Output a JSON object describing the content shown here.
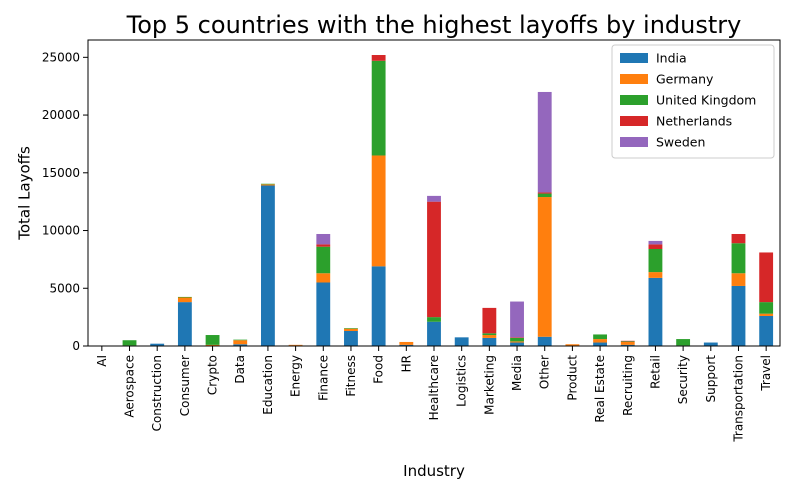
{
  "chart_data": {
    "type": "bar",
    "stacked": true,
    "title": "Top 5 countries with the highest layoffs by industry",
    "xlabel": "Industry",
    "ylabel": "Total Layoffs",
    "ylim": [
      0,
      26500
    ],
    "yticks": [
      0,
      5000,
      10000,
      15000,
      20000,
      25000
    ],
    "legend_position": "top-right",
    "grid": false,
    "categories": [
      "AI",
      "Aerospace",
      "Construction",
      "Consumer",
      "Crypto",
      "Data",
      "Education",
      "Energy",
      "Finance",
      "Fitness",
      "Food",
      "HR",
      "Healthcare",
      "Logistics",
      "Marketing",
      "Media",
      "Other",
      "Product",
      "Real Estate",
      "Recruiting",
      "Retail",
      "Security",
      "Support",
      "Transportation",
      "Travel"
    ],
    "series": [
      {
        "name": "India",
        "color": "#1f77b4",
        "values": [
          0,
          0,
          200,
          3800,
          0,
          150,
          13900,
          50,
          5500,
          1300,
          6900,
          100,
          2100,
          750,
          700,
          300,
          800,
          0,
          300,
          100,
          5900,
          50,
          300,
          5200,
          2600
        ]
      },
      {
        "name": "Germany",
        "color": "#ff7f0e",
        "values": [
          0,
          50,
          0,
          400,
          100,
          350,
          100,
          50,
          800,
          200,
          9600,
          250,
          0,
          0,
          250,
          100,
          12100,
          150,
          300,
          250,
          500,
          0,
          0,
          1100,
          200
        ]
      },
      {
        "name": "United Kingdom",
        "color": "#2ca02c",
        "values": [
          0,
          450,
          0,
          50,
          850,
          50,
          50,
          0,
          2300,
          50,
          8200,
          0,
          400,
          0,
          150,
          300,
          300,
          0,
          400,
          50,
          2000,
          550,
          0,
          2600,
          1000
        ]
      },
      {
        "name": "Netherlands",
        "color": "#d62728",
        "values": [
          0,
          0,
          0,
          0,
          0,
          0,
          0,
          0,
          200,
          0,
          500,
          0,
          10000,
          0,
          2200,
          50,
          100,
          0,
          0,
          50,
          400,
          0,
          0,
          800,
          4300
        ]
      },
      {
        "name": "Sweden",
        "color": "#9467bd",
        "values": [
          0,
          0,
          0,
          0,
          0,
          0,
          0,
          0,
          900,
          0,
          0,
          0,
          500,
          0,
          0,
          3100,
          8700,
          0,
          0,
          0,
          300,
          0,
          0,
          0,
          0
        ]
      }
    ]
  }
}
